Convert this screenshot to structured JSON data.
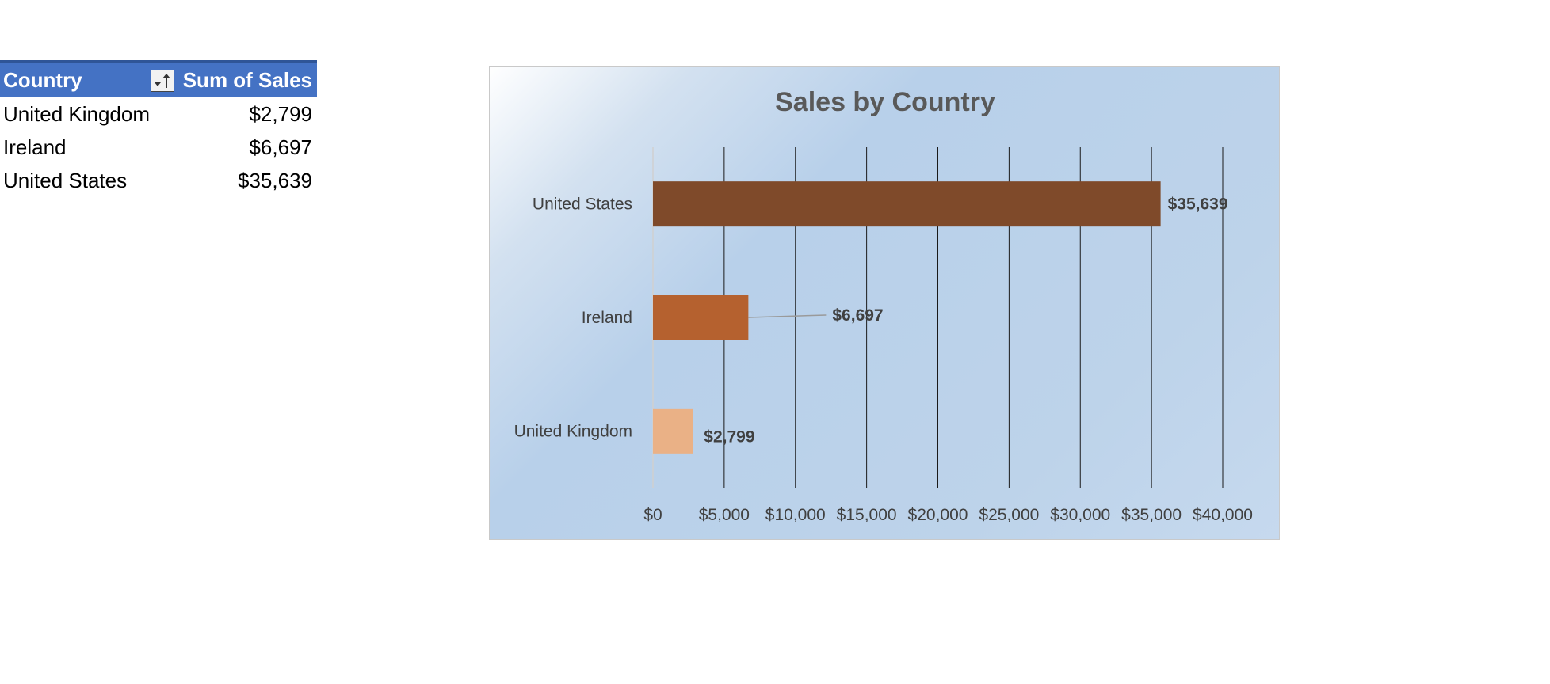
{
  "pivot": {
    "header": {
      "country": "Country",
      "sum": "Sum of Sales"
    },
    "rows": [
      {
        "country": "United Kingdom",
        "sales": "$2,799"
      },
      {
        "country": "Ireland",
        "sales": "$6,697"
      },
      {
        "country": "United States",
        "sales": "$35,639"
      }
    ],
    "filter_icon": "sort-filter-icon"
  },
  "colors": {
    "header_bg": "#4472c4",
    "united_states": "#7f4a2a",
    "ireland": "#b5612f",
    "united_kingdom": "#eab186"
  },
  "chart_data": {
    "type": "bar",
    "orientation": "horizontal",
    "title": "Sales by Country",
    "categories": [
      "United States",
      "Ireland",
      "United Kingdom"
    ],
    "values": [
      35639,
      6697,
      2799
    ],
    "data_labels": [
      "$35,639",
      "$6,697",
      "$2,799"
    ],
    "bar_colors": [
      "#7f4a2a",
      "#b5612f",
      "#eab186"
    ],
    "xlim": [
      0,
      40000
    ],
    "x_ticks": [
      0,
      5000,
      10000,
      15000,
      20000,
      25000,
      30000,
      35000,
      40000
    ],
    "x_tick_labels": [
      "$0",
      "$5,000",
      "$10,000",
      "$15,000",
      "$20,000",
      "$25,000",
      "$30,000",
      "$35,000",
      "$40,000"
    ],
    "grid": true,
    "legend": "none",
    "xlabel": "",
    "ylabel": ""
  }
}
